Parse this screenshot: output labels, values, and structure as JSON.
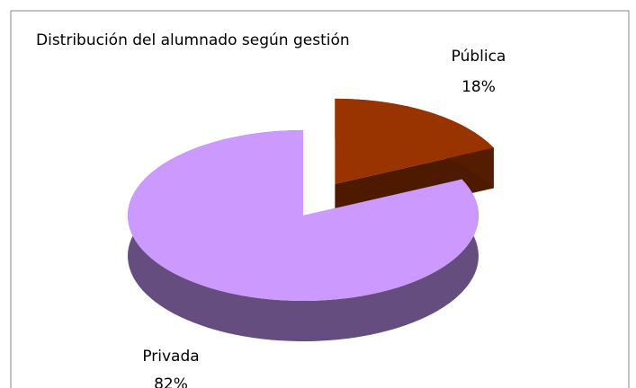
{
  "chart_data": {
    "type": "pie3d",
    "title": "Distribución del alumnado según gestión",
    "categories": [
      "Pública",
      "Privada"
    ],
    "values": [
      18,
      82
    ],
    "value_labels": [
      "18%",
      "82%"
    ],
    "colors": [
      "#993300",
      "#cc99ff"
    ]
  }
}
